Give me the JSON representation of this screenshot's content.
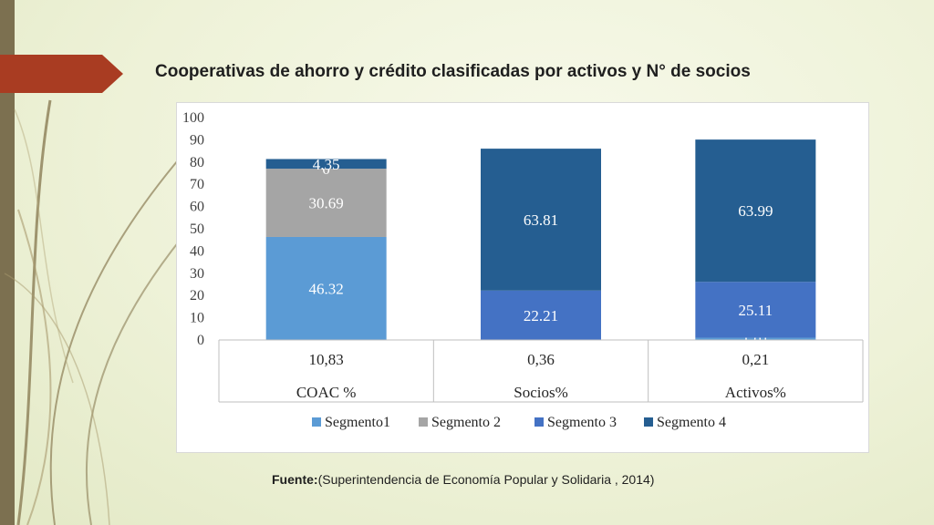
{
  "slide": {
    "title": "Cooperativas de ahorro y crédito clasificadas por activos y N° de socios",
    "source_label": "Fuente:",
    "source_text": "(Superintendencia de Economía Popular y Solidaria , 2014)"
  },
  "colors": {
    "accent": "#a93c22",
    "segmento1": "#5b9bd5",
    "segmento2": "#a5a5a5",
    "segmento3": "#4472c4",
    "segmento4": "#255e91"
  },
  "chart_data": {
    "type": "bar",
    "stacked": true,
    "categories": [
      "COAC %",
      "Socios%",
      "Activos%"
    ],
    "table_row": [
      "10,83",
      "0,36",
      "0,21"
    ],
    "ylim": [
      0,
      100
    ],
    "yticks": [
      0,
      10,
      20,
      30,
      40,
      50,
      60,
      70,
      80,
      90,
      100
    ],
    "series": [
      {
        "name": "Segmento1",
        "values": [
          46.32,
          0,
          1.01
        ],
        "labels": [
          "46.32",
          "",
          "1.01"
        ]
      },
      {
        "name": "Segmento 2",
        "values": [
          30.69,
          0,
          0
        ],
        "labels": [
          "30.69",
          "",
          ""
        ]
      },
      {
        "name": "Segmento 3",
        "values": [
          0,
          22.21,
          25.11
        ],
        "labels": [
          "0",
          "22.21",
          "25.11"
        ]
      },
      {
        "name": "Segmento 4",
        "values": [
          4.35,
          63.81,
          63.99
        ],
        "labels": [
          "4.35",
          "63.81",
          "63.99"
        ]
      }
    ],
    "legend": "bottom",
    "grid": false
  }
}
